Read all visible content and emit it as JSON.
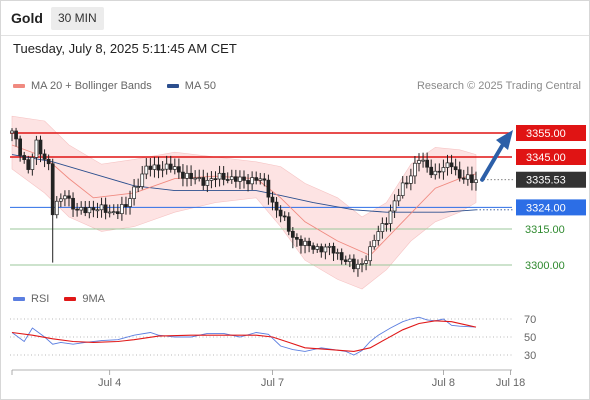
{
  "header": {
    "title": "Gold",
    "timeframe": "30 MIN",
    "datetime": "Tuesday, July 8, 2025 5:11:45 AM CET"
  },
  "legend": {
    "main": [
      {
        "label": "MA 20 + Bollinger Bands",
        "color": "#f08a80"
      },
      {
        "label": "MA 50",
        "color": "#2c4f8e"
      }
    ],
    "indicator": [
      {
        "label": "RSI",
        "color": "#5b7ee0"
      },
      {
        "label": "9MA",
        "color": "#e01818"
      }
    ]
  },
  "credit": "Research © 2025 Trading Central",
  "colors": {
    "band_fill": "#fde3e3",
    "ma20": "#f08a80",
    "ma50": "#2c4f8e",
    "red_level": "#e01414",
    "blue_level": "#2c6ee6",
    "green_level": "#2f8a2f",
    "candle": "#222222",
    "price_tag": "#333333",
    "arrow": "#2c5fa8",
    "rsi": "#5b7ee0",
    "rsi_ma": "#e01818"
  },
  "chart_data": {
    "type": "candlestick",
    "symbol": "Gold",
    "timeframe": "30 MIN",
    "x_ticks": [
      "Jul 4",
      "Jul 7",
      "Jul 8",
      "Jul 18"
    ],
    "current_price": "3335.53",
    "close_path": [
      [
        0,
        3355
      ],
      [
        4,
        3340
      ],
      [
        6,
        3350
      ],
      [
        9,
        3342
      ],
      [
        10,
        3322
      ],
      [
        13,
        3330
      ],
      [
        16,
        3322
      ],
      [
        20,
        3324
      ],
      [
        24,
        3322
      ],
      [
        28,
        3324
      ],
      [
        30,
        3332
      ],
      [
        33,
        3340
      ],
      [
        36,
        3341
      ],
      [
        40,
        3340
      ],
      [
        44,
        3336
      ],
      [
        48,
        3335
      ],
      [
        52,
        3337
      ],
      [
        56,
        3335
      ],
      [
        60,
        3336
      ],
      [
        62,
        3334
      ],
      [
        64,
        3326
      ],
      [
        67,
        3318
      ],
      [
        69,
        3312
      ],
      [
        72,
        3308
      ],
      [
        76,
        3307
      ],
      [
        79,
        3306
      ],
      [
        82,
        3302
      ],
      [
        84,
        3299
      ],
      [
        86,
        3301
      ],
      [
        88,
        3306
      ],
      [
        90,
        3314
      ],
      [
        93,
        3322
      ],
      [
        96,
        3333
      ],
      [
        98,
        3338
      ],
      [
        100,
        3344
      ],
      [
        102,
        3341
      ],
      [
        104,
        3338
      ],
      [
        106,
        3340
      ],
      [
        108,
        3343
      ],
      [
        110,
        3336
      ],
      [
        114,
        3335.5
      ]
    ],
    "levels": [
      {
        "label": "3355.00",
        "value": 3355,
        "kind": "resistance"
      },
      {
        "label": "3345.00",
        "value": 3345,
        "kind": "resistance"
      },
      {
        "label": "3335.53",
        "value": 3335.53,
        "kind": "last"
      },
      {
        "label": "3324.00",
        "value": 3324,
        "kind": "pivot"
      },
      {
        "label": "3315.00",
        "value": 3315,
        "kind": "support"
      },
      {
        "label": "3300.00",
        "value": 3300,
        "kind": "support"
      }
    ],
    "target_arrow": {
      "from": 3335.5,
      "to": 3355
    },
    "ma20_path": [
      [
        0,
        3350
      ],
      [
        8,
        3345
      ],
      [
        14,
        3336
      ],
      [
        20,
        3328
      ],
      [
        30,
        3330
      ],
      [
        40,
        3336
      ],
      [
        50,
        3337
      ],
      [
        60,
        3336
      ],
      [
        66,
        3328
      ],
      [
        72,
        3318
      ],
      [
        80,
        3310
      ],
      [
        88,
        3304
      ],
      [
        96,
        3318
      ],
      [
        104,
        3332
      ],
      [
        110,
        3336
      ],
      [
        114,
        3338
      ]
    ],
    "bb_upper": [
      [
        0,
        3362
      ],
      [
        8,
        3360
      ],
      [
        14,
        3350
      ],
      [
        22,
        3342
      ],
      [
        30,
        3344
      ],
      [
        40,
        3347
      ],
      [
        50,
        3345
      ],
      [
        60,
        3343
      ],
      [
        66,
        3341
      ],
      [
        72,
        3334
      ],
      [
        80,
        3328
      ],
      [
        86,
        3320
      ],
      [
        92,
        3326
      ],
      [
        98,
        3342
      ],
      [
        104,
        3349
      ],
      [
        110,
        3348
      ],
      [
        114,
        3346
      ]
    ],
    "bb_lower": [
      [
        0,
        3340
      ],
      [
        8,
        3330
      ],
      [
        14,
        3320
      ],
      [
        22,
        3314
      ],
      [
        30,
        3316
      ],
      [
        40,
        3322
      ],
      [
        50,
        3326
      ],
      [
        60,
        3328
      ],
      [
        66,
        3316
      ],
      [
        72,
        3302
      ],
      [
        80,
        3294
      ],
      [
        86,
        3290
      ],
      [
        92,
        3298
      ],
      [
        98,
        3310
      ],
      [
        104,
        3318
      ],
      [
        110,
        3322
      ],
      [
        114,
        3326
      ]
    ],
    "ma50_path": [
      [
        0,
        3346
      ],
      [
        10,
        3343
      ],
      [
        20,
        3338
      ],
      [
        30,
        3333
      ],
      [
        40,
        3331
      ],
      [
        50,
        3331
      ],
      [
        60,
        3331
      ],
      [
        66,
        3329
      ],
      [
        74,
        3326
      ],
      [
        84,
        3323
      ],
      [
        92,
        3322
      ],
      [
        100,
        3322
      ],
      [
        106,
        3322
      ],
      [
        114,
        3323
      ]
    ],
    "ma50_projection": [
      [
        114,
        3323
      ],
      [
        123,
        3323
      ]
    ],
    "rsi": {
      "ticks": [
        "70",
        "50",
        "30"
      ],
      "values": [
        [
          0,
          55
        ],
        [
          3,
          45
        ],
        [
          5,
          60
        ],
        [
          8,
          50
        ],
        [
          10,
          42
        ],
        [
          12,
          44
        ],
        [
          15,
          42
        ],
        [
          18,
          44
        ],
        [
          22,
          46
        ],
        [
          26,
          47
        ],
        [
          30,
          52
        ],
        [
          34,
          55
        ],
        [
          36,
          52
        ],
        [
          40,
          50
        ],
        [
          44,
          50
        ],
        [
          48,
          54
        ],
        [
          52,
          54
        ],
        [
          56,
          50
        ],
        [
          60,
          55
        ],
        [
          63,
          53
        ],
        [
          66,
          40
        ],
        [
          69,
          36
        ],
        [
          72,
          34
        ],
        [
          76,
          38
        ],
        [
          79,
          36
        ],
        [
          82,
          34
        ],
        [
          84,
          30
        ],
        [
          86,
          35
        ],
        [
          88,
          45
        ],
        [
          90,
          52
        ],
        [
          93,
          60
        ],
        [
          96,
          67
        ],
        [
          98,
          70
        ],
        [
          100,
          72
        ],
        [
          102,
          69
        ],
        [
          104,
          68
        ],
        [
          106,
          70
        ],
        [
          108,
          63
        ],
        [
          110,
          62
        ],
        [
          114,
          61
        ]
      ],
      "ma9": [
        [
          0,
          55
        ],
        [
          5,
          52
        ],
        [
          10,
          48
        ],
        [
          15,
          45
        ],
        [
          20,
          44
        ],
        [
          26,
          45
        ],
        [
          30,
          47
        ],
        [
          36,
          51
        ],
        [
          44,
          52
        ],
        [
          52,
          52
        ],
        [
          60,
          52
        ],
        [
          64,
          50
        ],
        [
          68,
          44
        ],
        [
          72,
          38
        ],
        [
          78,
          36
        ],
        [
          84,
          34
        ],
        [
          88,
          38
        ],
        [
          92,
          48
        ],
        [
          96,
          58
        ],
        [
          100,
          65
        ],
        [
          104,
          68
        ],
        [
          108,
          67
        ],
        [
          112,
          63
        ],
        [
          114,
          61
        ]
      ]
    }
  }
}
